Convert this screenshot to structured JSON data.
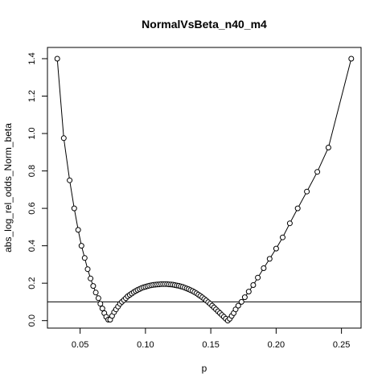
{
  "chart_data": {
    "type": "line",
    "title": "NormalVsBeta_n40_m4",
    "xlabel": "p",
    "ylabel": "abs_log_rel_odds_Norm_beta",
    "xlim": [
      0.025,
      0.265
    ],
    "ylim": [
      -0.04,
      1.46
    ],
    "x_ticks": [
      0.05,
      0.1,
      0.15,
      0.2,
      0.25
    ],
    "x_tick_labels": [
      "0.05",
      "0.10",
      "0.15",
      "0.20",
      "0.25"
    ],
    "y_ticks": [
      0.0,
      0.2,
      0.4,
      0.6,
      0.8,
      1.0,
      1.2,
      1.4
    ],
    "y_tick_labels": [
      "0.0",
      "0.2",
      "0.4",
      "0.6",
      "0.8",
      "1.0",
      "1.2",
      "1.4"
    ],
    "reference_line": {
      "orientation": "horizontal",
      "y": 0.1
    },
    "grid": false,
    "legend": "none",
    "marker": "open-circle",
    "series": [
      {
        "x": [
          0.0325,
          0.0375,
          0.042,
          0.0455,
          0.0485,
          0.051,
          0.0535,
          0.0558,
          0.058,
          0.06,
          0.062,
          0.064,
          0.0655,
          0.067,
          0.0685,
          0.07,
          0.0715,
          0.073,
          0.0745,
          0.076,
          0.0775,
          0.079,
          0.0805,
          0.082,
          0.0835,
          0.085,
          0.0865,
          0.088,
          0.0895,
          0.091,
          0.0925,
          0.094,
          0.0955,
          0.097,
          0.0985,
          0.1,
          0.1015,
          0.103,
          0.1045,
          0.106,
          0.1075,
          0.109,
          0.1105,
          0.112,
          0.1135,
          0.115,
          0.1165,
          0.118,
          0.1195,
          0.121,
          0.1225,
          0.124,
          0.1255,
          0.127,
          0.1285,
          0.13,
          0.1315,
          0.133,
          0.1345,
          0.136,
          0.1375,
          0.139,
          0.1405,
          0.142,
          0.1435,
          0.145,
          0.1465,
          0.148,
          0.1495,
          0.151,
          0.1525,
          0.154,
          0.1555,
          0.157,
          0.1585,
          0.16,
          0.1615,
          0.163,
          0.1645,
          0.166,
          0.1675,
          0.169,
          0.171,
          0.1735,
          0.176,
          0.179,
          0.1825,
          0.186,
          0.1905,
          0.195,
          0.2,
          0.205,
          0.2105,
          0.2165,
          0.2235,
          0.2315,
          0.24,
          0.2575
        ],
        "y": [
          1.4,
          0.975,
          0.75,
          0.6,
          0.485,
          0.4,
          0.335,
          0.275,
          0.225,
          0.185,
          0.15,
          0.12,
          0.09,
          0.065,
          0.04,
          0.02,
          0.005,
          0.005,
          0.025,
          0.045,
          0.06,
          0.075,
          0.09,
          0.1,
          0.11,
          0.12,
          0.13,
          0.138,
          0.145,
          0.152,
          0.158,
          0.164,
          0.169,
          0.174,
          0.178,
          0.181,
          0.184,
          0.187,
          0.189,
          0.191,
          0.192,
          0.193,
          0.194,
          0.195,
          0.195,
          0.195,
          0.195,
          0.194,
          0.193,
          0.192,
          0.19,
          0.188,
          0.186,
          0.183,
          0.18,
          0.176,
          0.172,
          0.168,
          0.163,
          0.158,
          0.152,
          0.146,
          0.139,
          0.132,
          0.124,
          0.116,
          0.108,
          0.099,
          0.09,
          0.08,
          0.07,
          0.06,
          0.05,
          0.04,
          0.03,
          0.02,
          0.01,
          0.0,
          0.01,
          0.025,
          0.04,
          0.06,
          0.08,
          0.1,
          0.125,
          0.155,
          0.19,
          0.23,
          0.28,
          0.33,
          0.385,
          0.445,
          0.52,
          0.6,
          0.69,
          0.795,
          0.925,
          1.4
        ]
      }
    ]
  }
}
